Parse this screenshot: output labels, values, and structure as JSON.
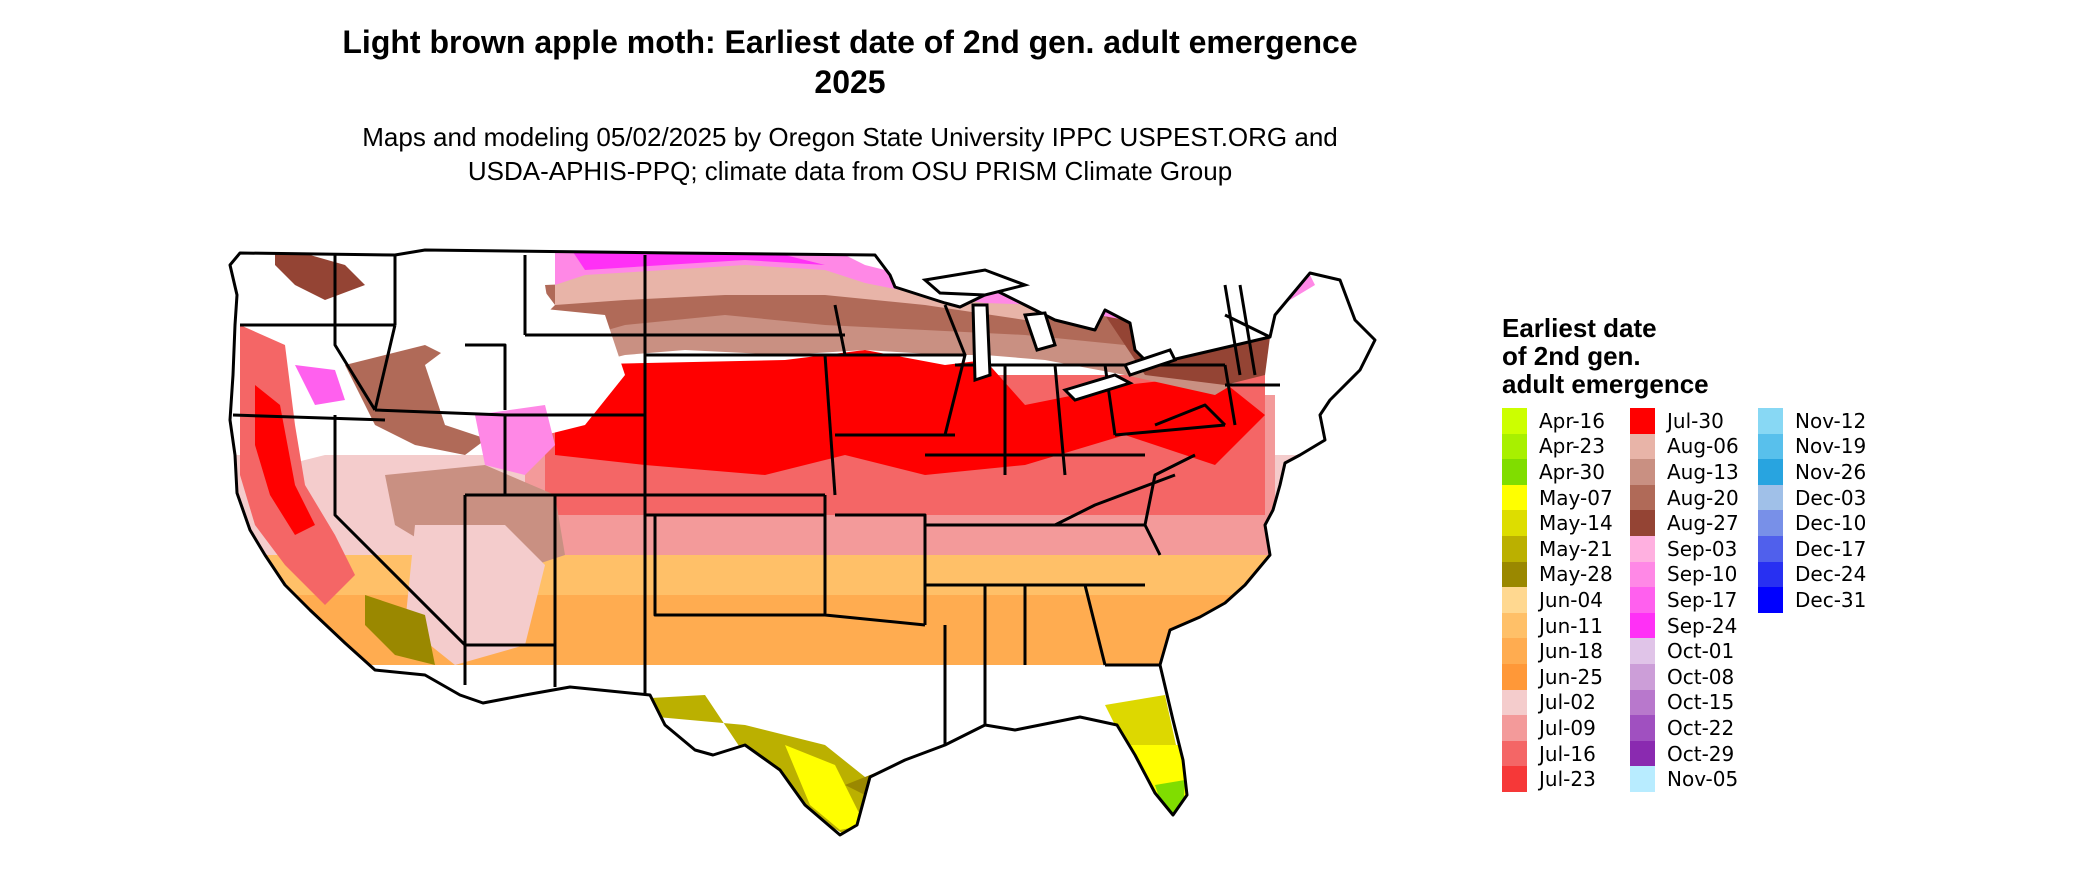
{
  "title": {
    "line1": "Light brown apple moth: Earliest date of 2nd gen. adult emergence",
    "line2": "2025"
  },
  "subtitle": {
    "line1": "Maps and modeling 05/02/2025 by Oregon State University IPPC USPEST.ORG and",
    "line2": "USDA-APHIS-PPQ; climate data from OSU PRISM Climate Group"
  },
  "legend": {
    "title_line1": "Earliest date",
    "title_line2": "of 2nd gen.",
    "title_line3": "adult emergence",
    "columns": [
      [
        {
          "label": "Apr-16",
          "color": "#ccff00"
        },
        {
          "label": "Apr-23",
          "color": "#a8f000"
        },
        {
          "label": "Apr-30",
          "color": "#80dd00"
        },
        {
          "label": "May-07",
          "color": "#ffff00"
        },
        {
          "label": "May-14",
          "color": "#dddd00"
        },
        {
          "label": "May-21",
          "color": "#bbb000"
        },
        {
          "label": "May-28",
          "color": "#9a8800"
        },
        {
          "label": "Jun-04",
          "color": "#ffd890"
        },
        {
          "label": "Jun-11",
          "color": "#ffc068"
        },
        {
          "label": "Jun-18",
          "color": "#ffac50"
        },
        {
          "label": "Jun-25",
          "color": "#ff9838"
        },
        {
          "label": "Jul-02",
          "color": "#f4cccc"
        },
        {
          "label": "Jul-09",
          "color": "#f39a9a"
        },
        {
          "label": "Jul-16",
          "color": "#f46666"
        },
        {
          "label": "Jul-23",
          "color": "#f63838"
        }
      ],
      [
        {
          "label": "Jul-30",
          "color": "#ff0000"
        },
        {
          "label": "Aug-06",
          "color": "#e8b4a8"
        },
        {
          "label": "Aug-13",
          "color": "#c99082"
        },
        {
          "label": "Aug-20",
          "color": "#b06a58"
        },
        {
          "label": "Aug-27",
          "color": "#944434"
        },
        {
          "label": "Sep-03",
          "color": "#ffb0e0"
        },
        {
          "label": "Sep-10",
          "color": "#ff88e6"
        },
        {
          "label": "Sep-17",
          "color": "#ff60ee"
        },
        {
          "label": "Sep-24",
          "color": "#ff30f6"
        },
        {
          "label": "Oct-01",
          "color": "#e0c4e8"
        },
        {
          "label": "Oct-08",
          "color": "#cc9ed8"
        },
        {
          "label": "Oct-15",
          "color": "#b878cc"
        },
        {
          "label": "Oct-22",
          "color": "#a050c0"
        },
        {
          "label": "Oct-29",
          "color": "#8a2ab0"
        },
        {
          "label": "Nov-05",
          "color": "#b8ecff"
        }
      ],
      [
        {
          "label": "Nov-12",
          "color": "#88d8f4"
        },
        {
          "label": "Nov-19",
          "color": "#58c0ec"
        },
        {
          "label": "Nov-26",
          "color": "#28a4e0"
        },
        {
          "label": "Dec-03",
          "color": "#a0c0e8"
        },
        {
          "label": "Dec-10",
          "color": "#7890e8"
        },
        {
          "label": "Dec-17",
          "color": "#5060ec"
        },
        {
          "label": "Dec-24",
          "color": "#2830f2"
        },
        {
          "label": "Dec-31",
          "color": "#0000ff"
        }
      ]
    ]
  }
}
